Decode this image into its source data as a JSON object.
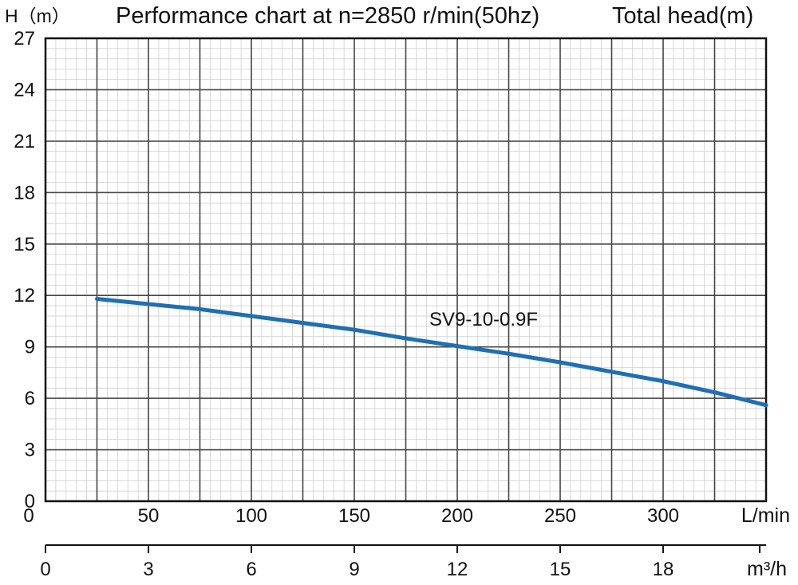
{
  "chart_data": {
    "type": "line",
    "title": "Performance chart at n=2850 r/min(50hz)",
    "title_right": "Total head(m)",
    "ylabel": "H（m）",
    "ylim": [
      0,
      27
    ],
    "yticks": [
      0,
      3,
      6,
      9,
      12,
      15,
      18,
      21,
      24,
      27
    ],
    "xlim": [
      0,
      350
    ],
    "xticks": [
      50,
      100,
      150,
      200,
      250,
      300
    ],
    "xunit": "L/min",
    "x2lim": [
      0,
      21
    ],
    "x2ticks": [
      0,
      3,
      6,
      9,
      12,
      15,
      18
    ],
    "x2unit": "m³/h",
    "grid": true,
    "series": [
      {
        "name": "SV9-10-0.9F",
        "color": "#1f6fb2",
        "x": [
          25,
          50,
          75,
          100,
          125,
          150,
          175,
          200,
          225,
          250,
          275,
          300,
          325,
          350
        ],
        "y": [
          11.8,
          11.5,
          11.2,
          10.8,
          10.4,
          10.0,
          9.5,
          9.05,
          8.6,
          8.1,
          7.55,
          7.0,
          6.35,
          5.6
        ]
      }
    ]
  }
}
